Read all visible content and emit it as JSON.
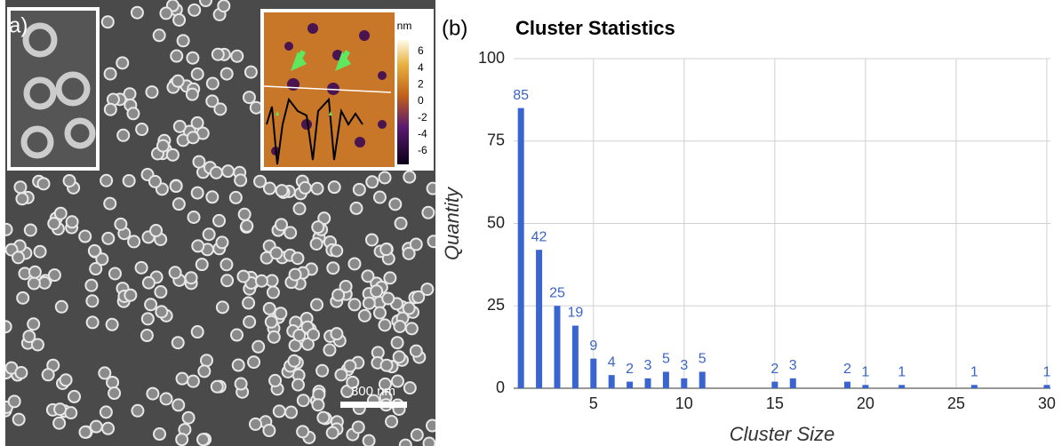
{
  "panel_a": {
    "label": "a)",
    "scale_bar": "300 nm",
    "afm_unit": "nm",
    "afm_colorbar_ticks": [
      "6",
      "4",
      "2",
      "0",
      "-2",
      "-4",
      "-6"
    ]
  },
  "chart_data": {
    "type": "bar",
    "panel_label": "(b)",
    "title": "Cluster Statistics",
    "x_label": "Cluster Size",
    "y_label": "Quantity",
    "x": [
      1,
      2,
      3,
      4,
      5,
      6,
      7,
      8,
      9,
      10,
      11,
      15,
      16,
      19,
      20,
      22,
      26,
      30
    ],
    "values": [
      85,
      42,
      25,
      19,
      9,
      4,
      2,
      3,
      5,
      3,
      5,
      2,
      3,
      2,
      1,
      1,
      1,
      1
    ],
    "color": "#3a64d0",
    "label_color": "#3a64c8",
    "xlim": [
      0.6,
      30.2
    ],
    "xticks": [
      5,
      10,
      15,
      20,
      25,
      30
    ],
    "ylim": [
      0,
      100
    ],
    "yticks": [
      0,
      25,
      50,
      75,
      100
    ],
    "grid": true
  }
}
